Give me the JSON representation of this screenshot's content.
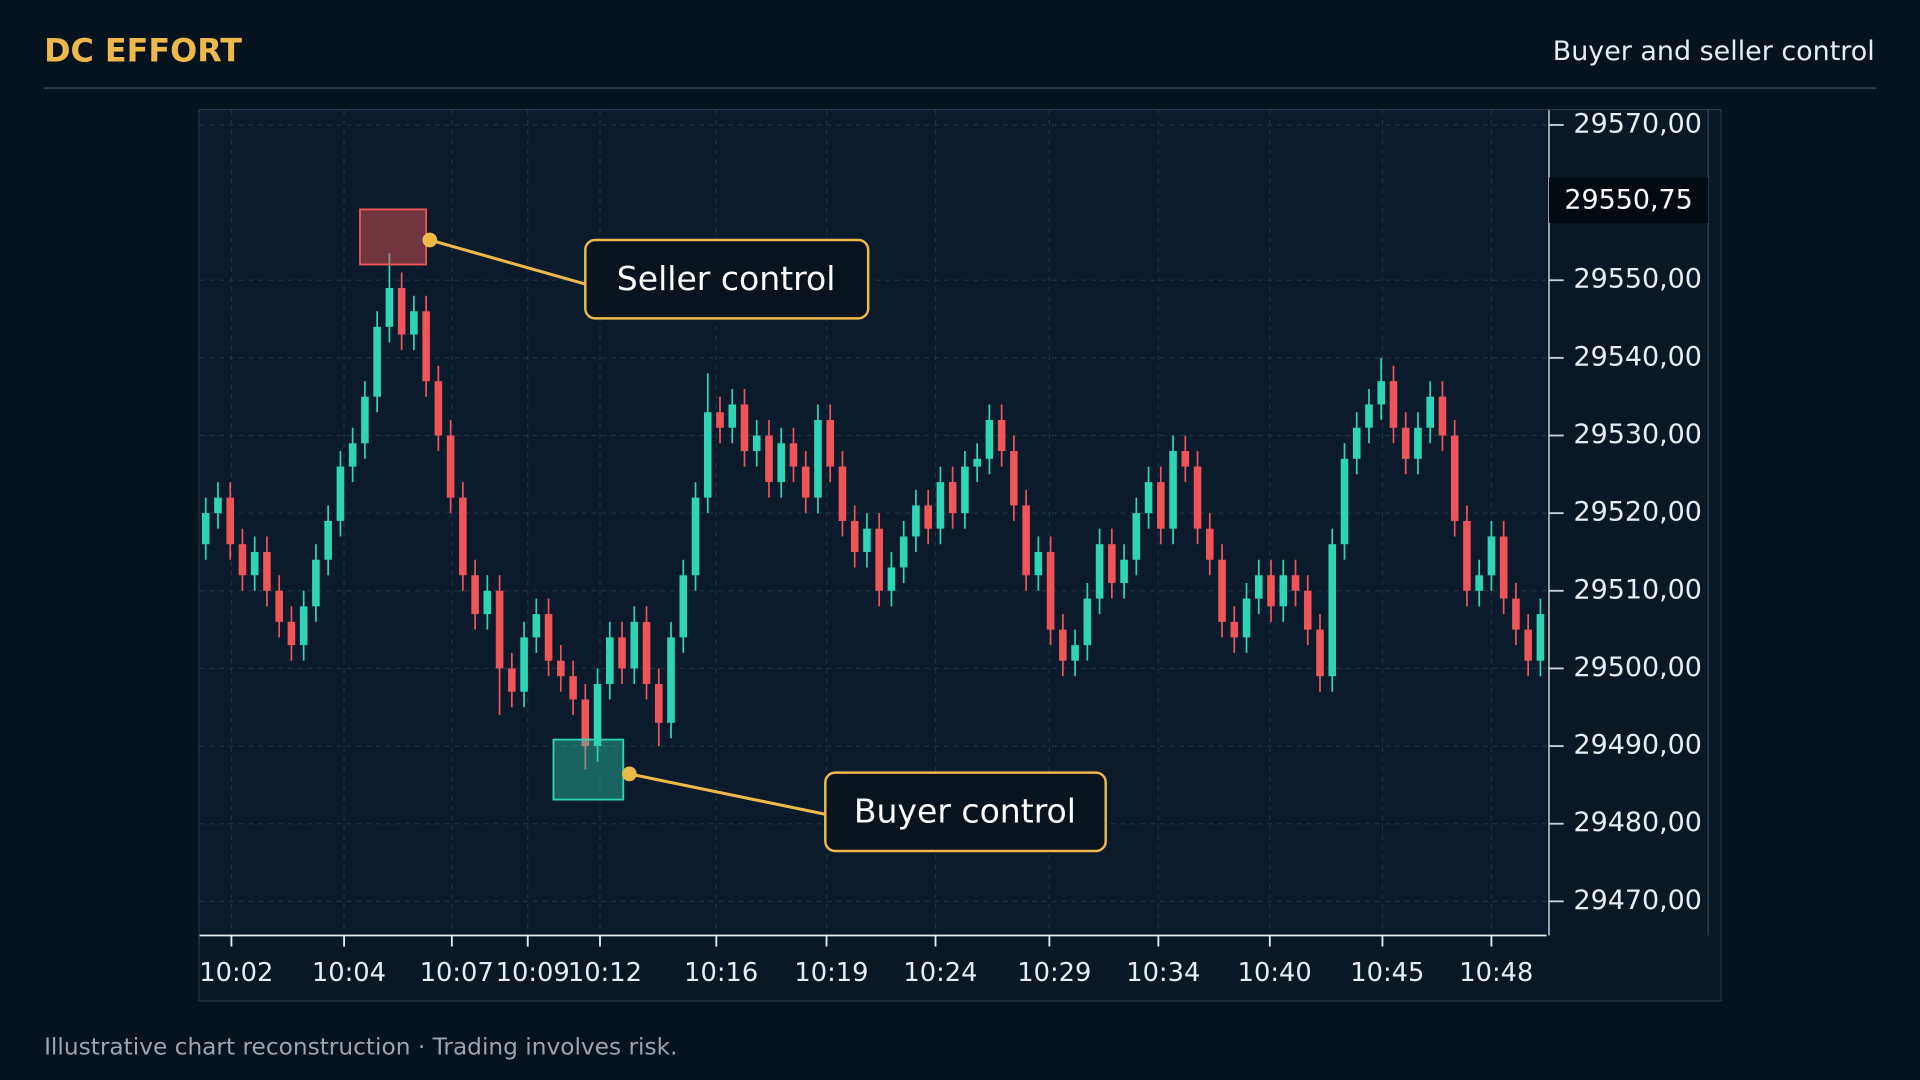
{
  "header": {
    "title": "DC EFFORT",
    "subtitle": "Buyer and seller control"
  },
  "footer": "Illustrative chart reconstruction · Trading involves risk.",
  "chart_data": {
    "type": "candlestick",
    "up_color": "#2fd3b5",
    "down_color": "#ef5458",
    "grid": true,
    "price_badge": "29550,75",
    "annotations": [
      {
        "text": "Seller control"
      },
      {
        "text": "Buyer control"
      }
    ],
    "xlim": [
      0,
      110
    ],
    "xticks": [
      {
        "value": 2.6,
        "label": "10:02"
      },
      {
        "value": 11.8,
        "label": "10:04"
      },
      {
        "value": 20.6,
        "label": "10:07"
      },
      {
        "value": 26.8,
        "label": "10:09"
      },
      {
        "value": 32.7,
        "label": "10:12"
      },
      {
        "value": 42.2,
        "label": "10:16"
      },
      {
        "value": 51.2,
        "label": "10:19"
      },
      {
        "value": 60.1,
        "label": "10:24"
      },
      {
        "value": 69.4,
        "label": "10:29"
      },
      {
        "value": 78.3,
        "label": "10:34"
      },
      {
        "value": 87.4,
        "label": "10:40"
      },
      {
        "value": 96.6,
        "label": "10:45"
      },
      {
        "value": 105.5,
        "label": "10:48"
      }
    ],
    "ylim": [
      29465.6,
      29571.9
    ],
    "yticks": [
      {
        "value": 29570,
        "label": "29570,00"
      },
      {
        "value": 29550,
        "label": "29550,00"
      },
      {
        "value": 29540,
        "label": "29540,00"
      },
      {
        "value": 29530,
        "label": "29530,00"
      },
      {
        "value": 29520,
        "label": "29520,00"
      },
      {
        "value": 29510,
        "label": "29510,00"
      },
      {
        "value": 29500,
        "label": "29500,00"
      },
      {
        "value": 29490,
        "label": "29490,00"
      },
      {
        "value": 29480,
        "label": "29480,00"
      },
      {
        "value": 29470,
        "label": "29470,00"
      }
    ],
    "open": [
      29516,
      29520,
      29522,
      29516,
      29512,
      29515,
      29510,
      29506,
      29503,
      29508,
      29514,
      29519,
      29526,
      29529,
      29535,
      29544,
      29549,
      29543,
      29546,
      29537,
      29530,
      29522,
      29512,
      29507,
      29510,
      29500,
      29497,
      29504,
      29507,
      29501,
      29499,
      29496,
      29490,
      29498,
      29504,
      29500,
      29506,
      29498,
      29493,
      29504,
      29512,
      29522,
      29533,
      29531,
      29534,
      29528,
      29530,
      29524,
      29529,
      29526,
      29522,
      29532,
      29526,
      29519,
      29515,
      29518,
      29510,
      29513,
      29517,
      29521,
      29518,
      29524,
      29520,
      29526,
      29527,
      29532,
      29528,
      29521,
      29512,
      29515,
      29505,
      29501,
      29503,
      29509,
      29516,
      29511,
      29514,
      29520,
      29524,
      29518,
      29528,
      29526,
      29518,
      29514,
      29506,
      29504,
      29509,
      29512,
      29508,
      29512,
      29510,
      29505,
      29499,
      29516,
      29527,
      29531,
      29534,
      29537,
      29531,
      29527,
      29531,
      29535,
      29530,
      29519,
      29510,
      29512,
      29517,
      29509,
      29505,
      29501
    ],
    "high": [
      29522,
      29524,
      29524,
      29518,
      29517,
      29517,
      29512,
      29508,
      29510,
      29516,
      29521,
      29528,
      29531,
      29537,
      29546,
      29553.5,
      29551,
      29548,
      29548,
      29539,
      29532,
      29524,
      29514,
      29512,
      29512,
      29502,
      29506,
      29509,
      29509,
      29503,
      29501,
      29498,
      29500,
      29506,
      29506,
      29508,
      29508,
      29500,
      29506,
      29514,
      29524,
      29538,
      29535,
      29536,
      29536,
      29532,
      29532,
      29531,
      29531,
      29528,
      29534,
      29534,
      29528,
      29521,
      29520,
      29520,
      29515,
      29519,
      29523,
      29523,
      29526,
      29526,
      29528,
      29529,
      29534,
      29534,
      29530,
      29523,
      29517,
      29517,
      29507,
      29505,
      29511,
      29518,
      29518,
      29516,
      29522,
      29526,
      29526,
      29530,
      29530,
      29528,
      29520,
      29516,
      29508,
      29511,
      29514,
      29514,
      29514,
      29514,
      29512,
      29507,
      29518,
      29529,
      29533,
      29536,
      29540,
      29539,
      29533,
      29533,
      29537,
      29537,
      29532,
      29521,
      29514,
      29519,
      29519,
      29511,
      29507,
      29509
    ],
    "low": [
      29514,
      29518,
      29514,
      29510,
      29510,
      29508,
      29504,
      29501,
      29501,
      29506,
      29512,
      29517,
      29524,
      29527,
      29533,
      29542,
      29541,
      29541,
      29535,
      29528,
      29520,
      29510,
      29505,
      29505,
      29494,
      29495,
      29495,
      29502,
      29499,
      29497,
      29494,
      29487,
      29488,
      29496,
      29498,
      29498,
      29496,
      29490,
      29491,
      29502,
      29510,
      29520,
      29529,
      29529,
      29526,
      29526,
      29522,
      29522,
      29524,
      29520,
      29520,
      29524,
      29517,
      29513,
      29513,
      29508,
      29508,
      29511,
      29515,
      29516,
      29516,
      29518,
      29518,
      29524,
      29525,
      29526,
      29519,
      29510,
      29510,
      29503,
      29499,
      29499,
      29501,
      29507,
      29509,
      29509,
      29512,
      29518,
      29516,
      29516,
      29524,
      29516,
      29512,
      29504,
      29502,
      29502,
      29507,
      29506,
      29506,
      29508,
      29503,
      29497,
      29497,
      29514,
      29525,
      29529,
      29532,
      29529,
      29525,
      29525,
      29529,
      29528,
      29517,
      29508,
      29508,
      29510,
      29507,
      29503,
      29499,
      29499
    ],
    "close": [
      29520,
      29522,
      29516,
      29512,
      29515,
      29510,
      29506,
      29503,
      29508,
      29514,
      29519,
      29526,
      29529,
      29535,
      29544,
      29549,
      29543,
      29546,
      29537,
      29530,
      29522,
      29512,
      29507,
      29510,
      29500,
      29497,
      29504,
      29507,
      29501,
      29499,
      29496,
      29490,
      29498,
      29504,
      29500,
      29506,
      29498,
      29493,
      29504,
      29512,
      29522,
      29533,
      29531,
      29534,
      29528,
      29530,
      29524,
      29529,
      29526,
      29522,
      29532,
      29526,
      29519,
      29515,
      29518,
      29510,
      29513,
      29517,
      29521,
      29518,
      29524,
      29520,
      29526,
      29527,
      29532,
      29528,
      29521,
      29512,
      29515,
      29505,
      29501,
      29503,
      29509,
      29516,
      29511,
      29514,
      29520,
      29524,
      29518,
      29528,
      29526,
      29518,
      29514,
      29506,
      29504,
      29509,
      29512,
      29508,
      29512,
      29510,
      29505,
      29499,
      29516,
      29527,
      29531,
      29534,
      29537,
      29531,
      29527,
      29531,
      29535,
      29530,
      29519,
      29510,
      29512,
      29517,
      29509,
      29505,
      29501,
      29507
    ]
  }
}
